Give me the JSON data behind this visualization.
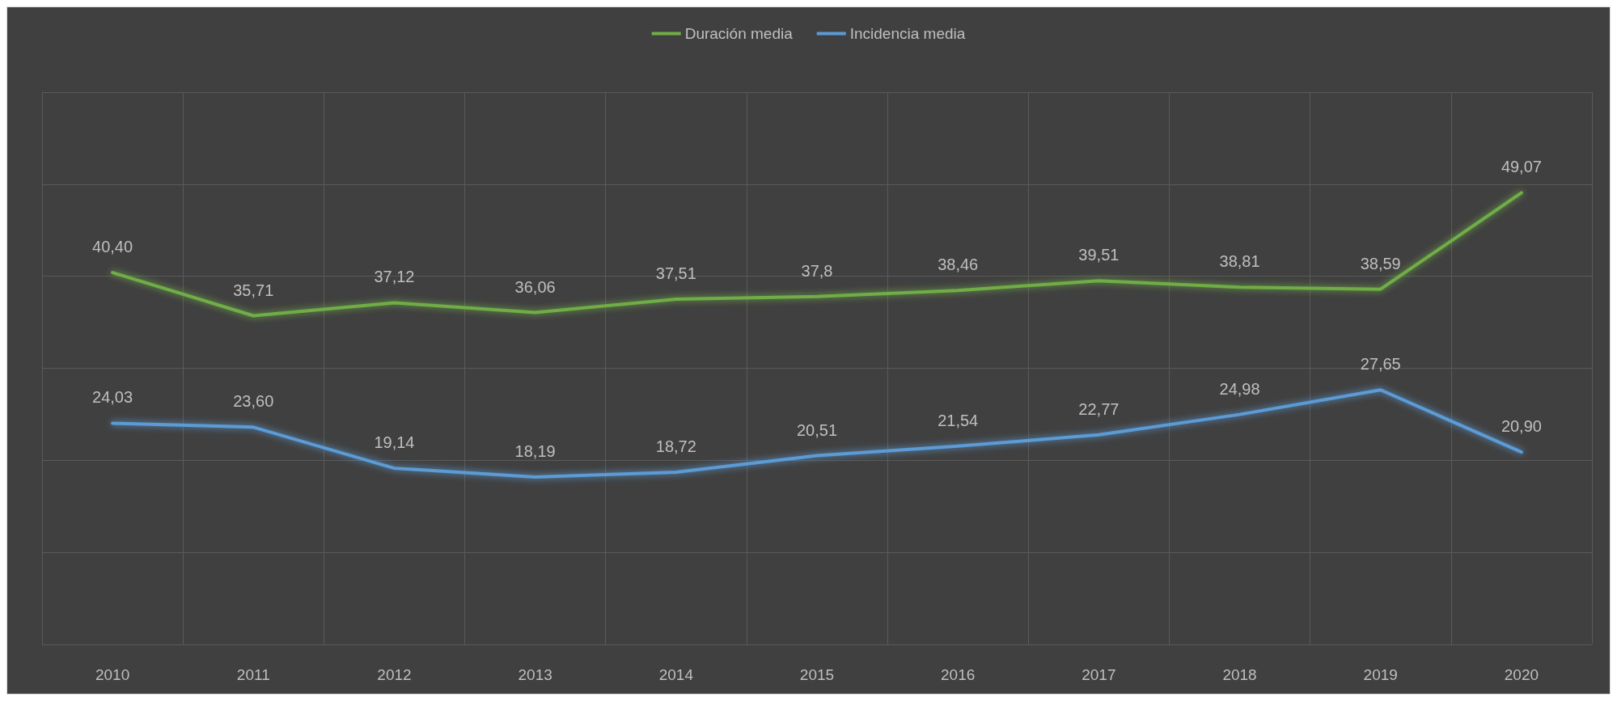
{
  "chart_data": {
    "type": "line",
    "categories": [
      "2010",
      "2011",
      "2012",
      "2013",
      "2014",
      "2015",
      "2016",
      "2017",
      "2018",
      "2019",
      "2020"
    ],
    "series": [
      {
        "name": "Duración media",
        "color": "#70ad47",
        "values": [
          40.4,
          35.71,
          37.12,
          36.06,
          37.51,
          37.8,
          38.46,
          39.51,
          38.81,
          38.59,
          49.07
        ],
        "value_labels": [
          "40,40",
          "35,71",
          "37,12",
          "36,06",
          "37,51",
          "37,8",
          "38,46",
          "39,51",
          "38,81",
          "38,59",
          "49,07"
        ]
      },
      {
        "name": "Incidencia media",
        "color": "#5b9bd5",
        "values": [
          24.03,
          23.6,
          19.14,
          18.19,
          18.72,
          20.51,
          21.54,
          22.77,
          24.98,
          27.65,
          20.9
        ],
        "value_labels": [
          "24,03",
          "23,60",
          "19,14",
          "18,19",
          "18,72",
          "20,51",
          "21,54",
          "22,77",
          "24,98",
          "27,65",
          "20,90"
        ]
      }
    ],
    "ylim": [
      0,
      60
    ],
    "yticks": [
      {
        "value": 0,
        "label": null
      },
      {
        "value": 10,
        "label": null
      },
      {
        "value": 20,
        "label": null
      },
      {
        "value": 30,
        "label": null
      },
      {
        "value": 40,
        "label": null
      },
      {
        "value": 50,
        "label": null
      },
      {
        "value": 60,
        "label": null
      }
    ],
    "tick_labels": "x",
    "grid": true,
    "legend": "top",
    "marker": "none",
    "line_style": "solid"
  }
}
